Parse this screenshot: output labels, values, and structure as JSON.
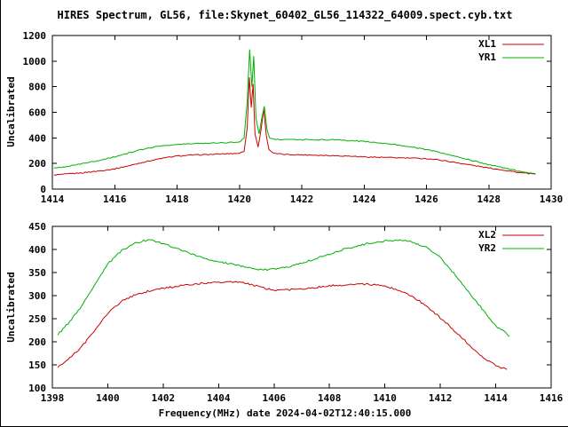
{
  "title": "HIRES Spectrum, GL56, file:Skynet_60402_GL56_114322_64009.spect.cyb.txt",
  "xlabel": "Frequency(MHz) date 2024-04-02T12:40:15.000",
  "colors": {
    "red": "#cc0000",
    "green": "#00b000",
    "axis": "#000000",
    "text": "#000000",
    "background": "#ffffff"
  },
  "chart_data": [
    {
      "type": "line",
      "ylabel": "Uncalibrated",
      "xlim": [
        1414,
        1430
      ],
      "ylim": [
        0,
        1200
      ],
      "xticks": [
        1414,
        1416,
        1418,
        1420,
        1422,
        1424,
        1426,
        1428,
        1430
      ],
      "yticks": [
        0,
        200,
        400,
        600,
        800,
        1000,
        1200
      ],
      "legend_position": "top-right",
      "grid": false,
      "noise": 4,
      "series": [
        {
          "name": "XL1",
          "color": "#cc0000",
          "points": [
            [
              1414.05,
              110
            ],
            [
              1414.5,
              118
            ],
            [
              1415,
              128
            ],
            [
              1415.5,
              142
            ],
            [
              1416,
              158
            ],
            [
              1416.5,
              185
            ],
            [
              1417,
              215
            ],
            [
              1417.5,
              240
            ],
            [
              1418,
              258
            ],
            [
              1418.5,
              266
            ],
            [
              1419,
              270
            ],
            [
              1419.5,
              275
            ],
            [
              1420,
              280
            ],
            [
              1420.15,
              295
            ],
            [
              1420.25,
              480
            ],
            [
              1420.32,
              870
            ],
            [
              1420.38,
              640
            ],
            [
              1420.44,
              820
            ],
            [
              1420.5,
              430
            ],
            [
              1420.6,
              330
            ],
            [
              1420.7,
              470
            ],
            [
              1420.78,
              630
            ],
            [
              1420.86,
              420
            ],
            [
              1420.95,
              310
            ],
            [
              1421.1,
              278
            ],
            [
              1421.5,
              270
            ],
            [
              1422,
              268
            ],
            [
              1422.5,
              265
            ],
            [
              1423,
              262
            ],
            [
              1423.5,
              258
            ],
            [
              1424,
              252
            ],
            [
              1424.5,
              248
            ],
            [
              1425,
              245
            ],
            [
              1425.5,
              242
            ],
            [
              1426,
              238
            ],
            [
              1426.5,
              225
            ],
            [
              1427,
              205
            ],
            [
              1427.5,
              185
            ],
            [
              1428,
              165
            ],
            [
              1428.5,
              148
            ],
            [
              1429,
              128
            ],
            [
              1429.5,
              116
            ]
          ]
        },
        {
          "name": "YR1",
          "color": "#00b000",
          "points": [
            [
              1414.05,
              162
            ],
            [
              1414.5,
              178
            ],
            [
              1415,
              200
            ],
            [
              1415.5,
              225
            ],
            [
              1416,
              252
            ],
            [
              1416.5,
              285
            ],
            [
              1417,
              318
            ],
            [
              1417.5,
              338
            ],
            [
              1418,
              348
            ],
            [
              1418.5,
              355
            ],
            [
              1419,
              360
            ],
            [
              1419.5,
              363
            ],
            [
              1420,
              368
            ],
            [
              1420.15,
              400
            ],
            [
              1420.25,
              680
            ],
            [
              1420.33,
              1095
            ],
            [
              1420.4,
              800
            ],
            [
              1420.46,
              1040
            ],
            [
              1420.53,
              560
            ],
            [
              1420.63,
              430
            ],
            [
              1420.72,
              560
            ],
            [
              1420.8,
              645
            ],
            [
              1420.88,
              470
            ],
            [
              1420.97,
              400
            ],
            [
              1421.1,
              390
            ],
            [
              1421.5,
              388
            ],
            [
              1422,
              386
            ],
            [
              1422.5,
              385
            ],
            [
              1423,
              385
            ],
            [
              1423.5,
              380
            ],
            [
              1424,
              372
            ],
            [
              1424.5,
              362
            ],
            [
              1425,
              348
            ],
            [
              1425.5,
              330
            ],
            [
              1426,
              308
            ],
            [
              1426.5,
              282
            ],
            [
              1427,
              252
            ],
            [
              1427.5,
              222
            ],
            [
              1428,
              192
            ],
            [
              1428.5,
              165
            ],
            [
              1429,
              138
            ],
            [
              1429.5,
              120
            ]
          ]
        }
      ]
    },
    {
      "type": "line",
      "ylabel": "Uncalibrated",
      "xlim": [
        1398,
        1416
      ],
      "ylim": [
        100,
        450
      ],
      "xticks": [
        1398,
        1400,
        1402,
        1404,
        1406,
        1408,
        1410,
        1412,
        1414,
        1416
      ],
      "yticks": [
        100,
        150,
        200,
        250,
        300,
        350,
        400,
        450
      ],
      "legend_position": "top-right",
      "grid": false,
      "noise": 2,
      "series": [
        {
          "name": "XL2",
          "color": "#cc0000",
          "points": [
            [
              1398.2,
              146
            ],
            [
              1398.5,
              158
            ],
            [
              1399,
              185
            ],
            [
              1399.5,
              222
            ],
            [
              1400,
              262
            ],
            [
              1400.5,
              288
            ],
            [
              1401,
              302
            ],
            [
              1401.5,
              310
            ],
            [
              1402,
              316
            ],
            [
              1402.5,
              320
            ],
            [
              1403,
              324
            ],
            [
              1403.5,
              327
            ],
            [
              1404,
              329
            ],
            [
              1404.5,
              330
            ],
            [
              1405,
              327
            ],
            [
              1405.3,
              322
            ],
            [
              1405.7,
              315
            ],
            [
              1406,
              312
            ],
            [
              1406.5,
              312
            ],
            [
              1407,
              315
            ],
            [
              1407.5,
              318
            ],
            [
              1408,
              321
            ],
            [
              1408.5,
              323
            ],
            [
              1409,
              325
            ],
            [
              1409.5,
              324
            ],
            [
              1410,
              320
            ],
            [
              1410.5,
              312
            ],
            [
              1411,
              298
            ],
            [
              1411.5,
              278
            ],
            [
              1412,
              252
            ],
            [
              1412.5,
              225
            ],
            [
              1413,
              196
            ],
            [
              1413.5,
              168
            ],
            [
              1414,
              148
            ],
            [
              1414.4,
              140
            ]
          ]
        },
        {
          "name": "YR2",
          "color": "#00b000",
          "points": [
            [
              1398.2,
              216
            ],
            [
              1398.5,
              235
            ],
            [
              1399,
              272
            ],
            [
              1399.5,
              322
            ],
            [
              1400,
              368
            ],
            [
              1400.5,
              398
            ],
            [
              1401,
              414
            ],
            [
              1401.3,
              419
            ],
            [
              1401.6,
              420
            ],
            [
              1402,
              412
            ],
            [
              1402.5,
              402
            ],
            [
              1403,
              390
            ],
            [
              1403.5,
              381
            ],
            [
              1404,
              374
            ],
            [
              1404.5,
              368
            ],
            [
              1405,
              361
            ],
            [
              1405.5,
              356
            ],
            [
              1406,
              357
            ],
            [
              1406.5,
              362
            ],
            [
              1407,
              370
            ],
            [
              1407.5,
              380
            ],
            [
              1408,
              390
            ],
            [
              1408.5,
              400
            ],
            [
              1409,
              408
            ],
            [
              1409.5,
              414
            ],
            [
              1410,
              418
            ],
            [
              1410.4,
              420
            ],
            [
              1410.8,
              419
            ],
            [
              1411,
              415
            ],
            [
              1411.5,
              405
            ],
            [
              1412,
              382
            ],
            [
              1412.3,
              362
            ],
            [
              1412.6,
              340
            ],
            [
              1413,
              310
            ],
            [
              1413.5,
              272
            ],
            [
              1414,
              235
            ],
            [
              1414.5,
              212
            ]
          ]
        }
      ]
    }
  ]
}
